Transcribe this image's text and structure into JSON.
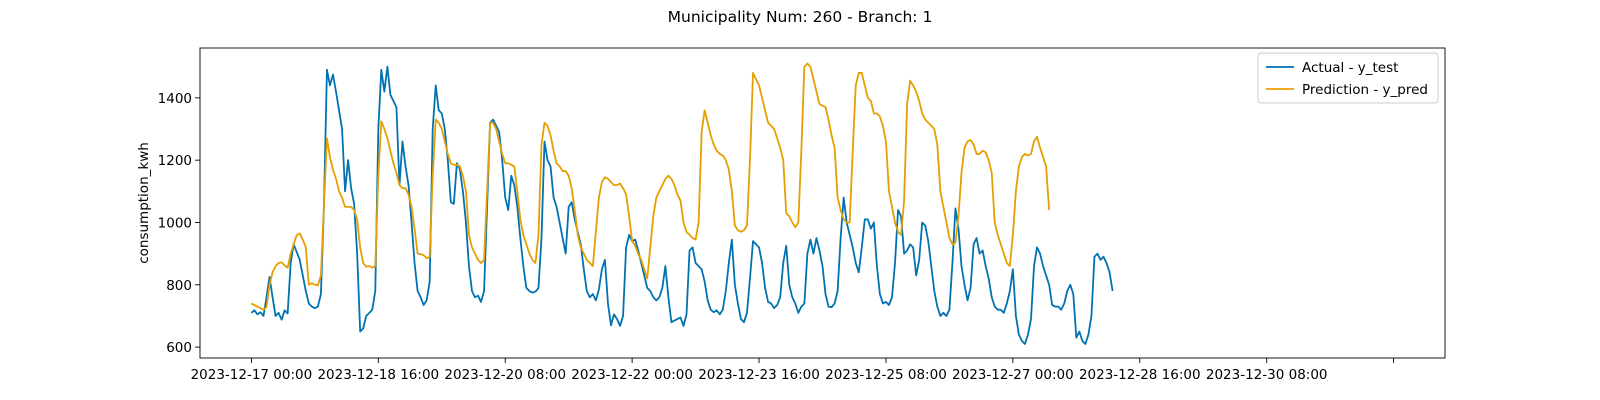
{
  "chart_data": {
    "type": "line",
    "title": "Municipality Num: 260 - Branch: 1",
    "xlabel": "",
    "ylabel": "consumption_kwh",
    "x_start": "2023-12-17 00:00",
    "x_step_hours": 4,
    "x_tick_labels": [
      "2023-12-17 00:00",
      "2023-12-18 16:00",
      "2023-12-20 08:00",
      "2023-12-22 00:00",
      "2023-12-23 16:00",
      "2023-12-25 08:00",
      "2023-12-27 00:00",
      "2023-12-28 16:00",
      "2023-12-30 08:00",
      ""
    ],
    "y_ticks": [
      600,
      800,
      1000,
      1200,
      1400
    ],
    "ylim": [
      565,
      1560
    ],
    "legend": {
      "position": "top-right"
    },
    "grid": false,
    "series": [
      {
        "name": "Actual - y_test",
        "color": "#0072b2",
        "values": [
          710,
          718,
          705,
          712,
          700,
          760,
          825,
          760,
          700,
          710,
          688,
          718,
          708,
          870,
          930,
          905,
          880,
          830,
          780,
          740,
          730,
          725,
          730,
          770,
          1050,
          1490,
          1440,
          1475,
          1420,
          1360,
          1300,
          1100,
          1200,
          1110,
          1060,
          900,
          650,
          660,
          700,
          710,
          720,
          780,
          1300,
          1490,
          1420,
          1500,
          1410,
          1390,
          1370,
          1120,
          1260,
          1180,
          1120,
          1000,
          870,
          780,
          760,
          735,
          750,
          810,
          1300,
          1440,
          1360,
          1350,
          1300,
          1200,
          1065,
          1060,
          1190,
          1170,
          1100,
          1000,
          860,
          780,
          760,
          765,
          745,
          780,
          1050,
          1320,
          1330,
          1310,
          1290,
          1200,
          1080,
          1040,
          1150,
          1120,
          1050,
          950,
          860,
          790,
          780,
          775,
          778,
          790,
          950,
          1260,
          1200,
          1180,
          1080,
          1050,
          1000,
          950,
          900,
          1050,
          1065,
          1010,
          970,
          930,
          850,
          780,
          760,
          770,
          750,
          785,
          850,
          880,
          740,
          670,
          705,
          690,
          668,
          700,
          920,
          960,
          940,
          945,
          910,
          870,
          830,
          790,
          780,
          760,
          750,
          760,
          790,
          860,
          760,
          680,
          685,
          690,
          695,
          668,
          705,
          910,
          920,
          870,
          860,
          850,
          810,
          750,
          720,
          712,
          718,
          705,
          720,
          780,
          870,
          945,
          800,
          740,
          690,
          680,
          710,
          820,
          940,
          930,
          920,
          870,
          790,
          745,
          740,
          725,
          735,
          760,
          870,
          925,
          800,
          760,
          740,
          710,
          730,
          740,
          900,
          945,
          900,
          950,
          910,
          860,
          770,
          730,
          728,
          740,
          780,
          950,
          1080,
          1000,
          960,
          920,
          870,
          840,
          920,
          1010,
          1010,
          980,
          1000,
          860,
          770,
          740,
          745,
          735,
          760,
          870,
          1040,
          1020,
          900,
          910,
          930,
          920,
          830,
          880,
          1000,
          990,
          940,
          860,
          780,
          730,
          700,
          710,
          700,
          720,
          870,
          1045,
          980,
          860,
          800,
          750,
          790,
          930,
          950,
          900,
          910,
          860,
          820,
          760,
          730,
          720,
          720,
          710,
          740,
          780,
          850,
          700,
          640,
          620,
          610,
          640,
          690,
          860,
          920,
          900,
          860,
          830,
          800,
          735,
          730,
          730,
          720,
          740,
          780,
          800,
          770,
          630,
          650,
          620,
          610,
          640,
          700,
          890,
          900,
          880,
          890,
          870,
          840,
          780
        ],
        "values_note": ""
      },
      {
        "name": "Prediction - y_pred",
        "color": "#e69f00",
        "values": [
          740,
          735,
          730,
          725,
          720,
          728,
          800,
          840,
          860,
          870,
          872,
          862,
          855,
          900,
          930,
          960,
          965,
          945,
          920,
          800,
          805,
          800,
          798,
          830,
          1050,
          1270,
          1210,
          1170,
          1140,
          1100,
          1080,
          1050,
          1050,
          1050,
          1040,
          1010,
          920,
          870,
          858,
          860,
          855,
          860,
          1150,
          1325,
          1300,
          1270,
          1230,
          1190,
          1160,
          1120,
          1110,
          1110,
          1090,
          1050,
          980,
          900,
          898,
          895,
          885,
          890,
          1150,
          1330,
          1320,
          1300,
          1260,
          1220,
          1190,
          1185,
          1185,
          1180,
          1150,
          1100,
          960,
          920,
          900,
          880,
          870,
          880,
          1100,
          1320,
          1320,
          1300,
          1260,
          1220,
          1190,
          1190,
          1185,
          1180,
          1100,
          1010,
          960,
          930,
          900,
          880,
          870,
          960,
          1250,
          1320,
          1310,
          1280,
          1230,
          1190,
          1180,
          1165,
          1165,
          1150,
          1110,
          1040,
          960,
          920,
          900,
          880,
          870,
          860,
          970,
          1080,
          1130,
          1145,
          1140,
          1130,
          1120,
          1120,
          1125,
          1110,
          1090,
          1020,
          940,
          925,
          900,
          880,
          850,
          820,
          920,
          1020,
          1080,
          1100,
          1120,
          1140,
          1150,
          1140,
          1120,
          1090,
          1070,
          1000,
          970,
          960,
          950,
          945,
          1000,
          1290,
          1360,
          1320,
          1280,
          1250,
          1230,
          1220,
          1215,
          1200,
          1170,
          1100,
          990,
          975,
          970,
          975,
          990,
          1200,
          1480,
          1460,
          1440,
          1400,
          1360,
          1320,
          1310,
          1300,
          1270,
          1240,
          1200,
          1030,
          1020,
          1000,
          985,
          1000,
          1230,
          1500,
          1510,
          1500,
          1460,
          1420,
          1380,
          1375,
          1370,
          1330,
          1280,
          1240,
          1080,
          1040,
          1010,
          1000,
          1000,
          1230,
          1440,
          1480,
          1480,
          1440,
          1400,
          1390,
          1350,
          1350,
          1340,
          1310,
          1260,
          1100,
          1050,
          1000,
          970,
          960,
          1070,
          1380,
          1455,
          1440,
          1420,
          1390,
          1350,
          1330,
          1320,
          1310,
          1300,
          1250,
          1100,
          1050,
          1000,
          950,
          930,
          935,
          1020,
          1160,
          1240,
          1260,
          1265,
          1250,
          1220,
          1220,
          1230,
          1225,
          1200,
          1160,
          1000,
          960,
          930,
          900,
          870,
          860,
          960,
          1100,
          1180,
          1210,
          1220,
          1215,
          1220,
          1260,
          1275,
          1240,
          1210,
          1180,
          1040
        ]
      }
    ]
  }
}
